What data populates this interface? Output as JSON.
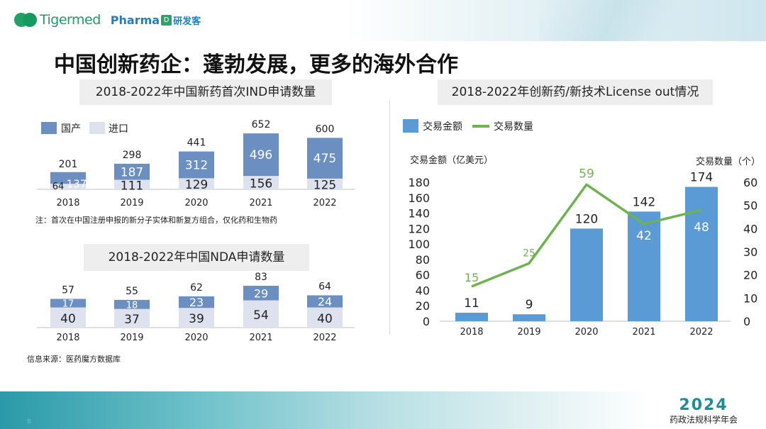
{
  "header": {
    "logo_text": "Tigermed",
    "partner_text": "Pharma",
    "partner_badge": "D",
    "partner_cn": "研发客"
  },
  "title": "中国创新药企：蓬勃发展，更多的海外合作",
  "note": "注：首次在中国注册申报的新分子实体和新复方组合，仅化药和生物药",
  "source": "信息来源：医药魔方数据库",
  "footer": {
    "year": "2024",
    "event": "药政法规科学年会",
    "page_number": "8"
  },
  "colors": {
    "domestic": "#6b8fc0",
    "import": "#dde2ee",
    "amount": "#5b9bd5",
    "count": "#6fb34f",
    "count_label": "#6fb34f"
  },
  "chart_data": [
    {
      "type": "bar",
      "stacked": true,
      "title": "2018-2022年中国新药首次IND申请数量",
      "categories": [
        "2018",
        "2019",
        "2020",
        "2021",
        "2022"
      ],
      "series": [
        {
          "name": "国产",
          "values": [
            137,
            187,
            312,
            496,
            475
          ]
        },
        {
          "name": "进口",
          "values": [
            64,
            111,
            129,
            156,
            125
          ]
        }
      ],
      "totals": [
        201,
        298,
        441,
        652,
        600
      ],
      "legend": "top-left"
    },
    {
      "type": "bar",
      "stacked": true,
      "title": "2018-2022年中国NDA申请数量",
      "categories": [
        "2018",
        "2019",
        "2020",
        "2021",
        "2022"
      ],
      "series": [
        {
          "values": [
            17,
            18,
            23,
            29,
            24
          ]
        },
        {
          "values": [
            40,
            37,
            39,
            54,
            40
          ]
        }
      ],
      "totals": [
        57,
        55,
        62,
        83,
        64
      ]
    },
    {
      "type": "bar",
      "title": "2018-2022年创新药/新技术License out情况",
      "categories": [
        "2018",
        "2019",
        "2020",
        "2021",
        "2022"
      ],
      "series": [
        {
          "name": "交易金额",
          "values": [
            11,
            9,
            120,
            142,
            174
          ],
          "axis": "left"
        },
        {
          "name": "交易数量",
          "values": [
            15,
            25,
            59,
            42,
            48
          ],
          "type": "line",
          "axis": "right"
        }
      ],
      "ylabel": "交易金额（亿美元）",
      "y2label": "交易数量（个）",
      "ylim": [
        0,
        180
      ],
      "yticks": [
        0,
        20,
        40,
        60,
        80,
        100,
        120,
        140,
        160,
        180
      ],
      "y2lim": [
        0,
        60
      ],
      "y2ticks": [
        0,
        10,
        20,
        30,
        40,
        50,
        60
      ],
      "legend": "top-left"
    }
  ]
}
